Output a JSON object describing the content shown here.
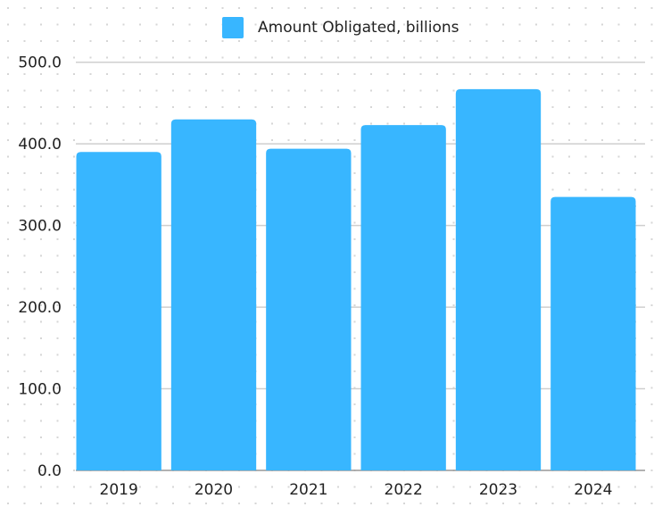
{
  "chart_data": {
    "type": "bar",
    "categories": [
      "2019",
      "2020",
      "2021",
      "2022",
      "2023",
      "2024"
    ],
    "series": [
      {
        "name": "Amount Obligated, billions",
        "values": [
          390,
          430,
          394,
          423,
          467,
          335
        ],
        "color": "#38b6ff"
      }
    ],
    "title": "",
    "xlabel": "",
    "ylabel": "",
    "ylim": [
      0,
      500
    ],
    "yticks": [
      "0.0",
      "100.0",
      "200.0",
      "300.0",
      "400.0",
      "500.0"
    ],
    "grid": true,
    "legend_position": "top"
  }
}
